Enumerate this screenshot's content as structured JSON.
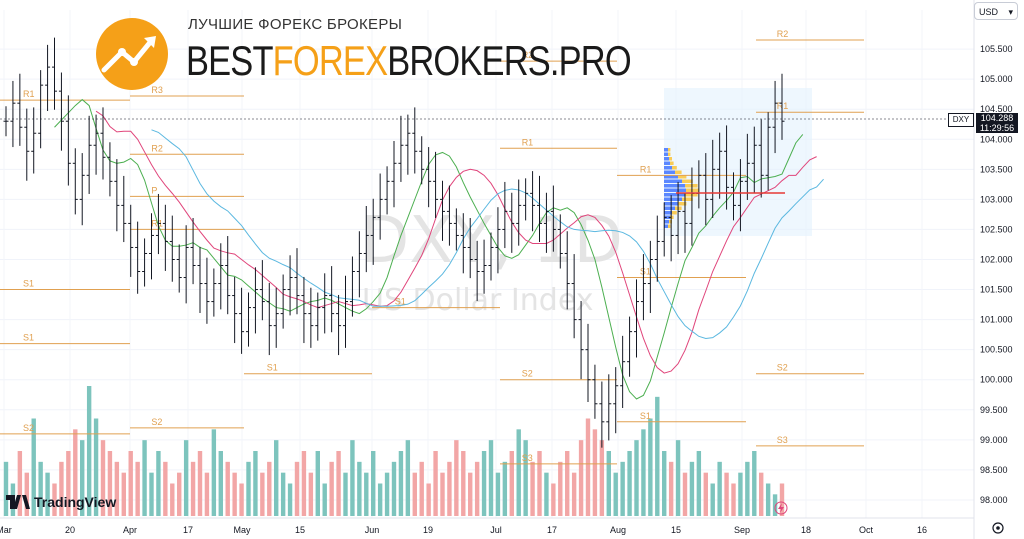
{
  "header": {
    "logo_subtitle": "ЛУЧШИЕ ФОРЕКС БРОКЕРЫ",
    "logo_part_a": "BEST",
    "logo_part_b": "FOREX",
    "logo_part_c": "BROKERS.PRO"
  },
  "toolbar": {
    "currency": "USD"
  },
  "branding": {
    "tradingview": "TradingView"
  },
  "watermark": {
    "symbol": "DXY, 1D",
    "name": "US Dollar Index"
  },
  "price_label": {
    "symbol": "DXY",
    "price": "104.288",
    "countdown": "11:29:56"
  },
  "colors": {
    "up": "#131722",
    "vol_up": "#7dc4bd",
    "vol_down": "#f2a6a6",
    "sma_fast": "#4caf50",
    "sma_mid": "#e0457b",
    "sma_slow": "#5bb8e0",
    "pivot": "#e0a050",
    "poc": "#e53935"
  },
  "chart_data": {
    "type": "ohlc",
    "y_ticks": [
      "105.500",
      "105.000",
      "104.500",
      "104.000",
      "103.500",
      "103.000",
      "102.500",
      "102.000",
      "101.500",
      "101.000",
      "100.500",
      "100.000",
      "99.500",
      "99.000",
      "98.500",
      "98.000"
    ],
    "ylim": [
      97.7,
      106.15
    ],
    "x_ticks": [
      "Mar",
      "20",
      "Apr",
      "17",
      "May",
      "15",
      "Jun",
      "19",
      "Jul",
      "17",
      "Aug",
      "15",
      "Sep",
      "18",
      "Oct",
      "16"
    ],
    "pivots": [
      {
        "label": "R1",
        "value": 104.65
      },
      {
        "label": "R3",
        "value": 104.72
      },
      {
        "label": "R2",
        "value": 103.75
      },
      {
        "label": "R1",
        "value": 102.5
      },
      {
        "label": "S1",
        "value": 101.5
      },
      {
        "label": "S1",
        "value": 100.6
      },
      {
        "label": "S1",
        "value": 100.1
      },
      {
        "label": "S2",
        "value": 99.1
      },
      {
        "label": "S2",
        "value": 99.2
      },
      {
        "label": "R2",
        "value": 105.3
      },
      {
        "label": "R2",
        "value": 105.65
      },
      {
        "label": "R1",
        "value": 103.85
      },
      {
        "label": "R1",
        "value": 104.45
      },
      {
        "label": "R1",
        "value": 103.4
      },
      {
        "label": "P",
        "value": 103.05
      },
      {
        "label": "S1",
        "value": 101.2
      },
      {
        "label": "S1",
        "value": 101.7
      },
      {
        "label": "S2",
        "value": 100.0
      },
      {
        "label": "S2",
        "value": 100.1
      },
      {
        "label": "S1",
        "value": 99.3
      },
      {
        "label": "S3",
        "value": 98.6
      },
      {
        "label": "S3",
        "value": 98.9
      }
    ],
    "closes": [
      104.3,
      104.6,
      104.2,
      103.8,
      104.1,
      104.9,
      105.2,
      104.8,
      104.3,
      103.6,
      103.0,
      103.4,
      103.9,
      104.1,
      103.7,
      103.3,
      102.9,
      102.6,
      102.2,
      101.8,
      102.1,
      102.4,
      102.6,
      102.3,
      102.0,
      101.7,
      102.2,
      101.9,
      101.6,
      101.3,
      101.6,
      101.9,
      101.4,
      101.1,
      100.8,
      101.2,
      101.5,
      101.3,
      100.9,
      101.1,
      101.5,
      101.7,
      101.4,
      101.1,
      100.9,
      101.2,
      101.4,
      101.1,
      100.9,
      101.3,
      101.8,
      102.1,
      102.4,
      102.7,
      103.0,
      103.3,
      103.6,
      103.9,
      104.1,
      103.8,
      103.5,
      103.3,
      103.0,
      102.8,
      102.6,
      102.4,
      102.2,
      102.0,
      101.8,
      101.9,
      102.2,
      102.5,
      102.8,
      102.6,
      102.9,
      103.1,
      102.9,
      102.6,
      102.8,
      102.5,
      102.1,
      101.6,
      101.0,
      100.5,
      100.0,
      99.6,
      99.3,
      99.6,
      99.9,
      100.3,
      100.8,
      101.3,
      101.6,
      102.0,
      102.3,
      102.7,
      102.4,
      102.8,
      102.6,
      103.1,
      103.4,
      103.0,
      103.5,
      103.8,
      103.2,
      102.9,
      103.3,
      103.6,
      103.9,
      103.4,
      104.2,
      104.6,
      104.3
    ],
    "volumes": [
      5,
      3,
      6,
      4,
      9,
      5,
      4,
      3,
      5,
      6,
      8,
      7,
      12,
      9,
      7,
      6,
      5,
      4,
      6,
      5,
      7,
      4,
      6,
      5,
      3,
      4,
      7,
      5,
      6,
      4,
      8,
      6,
      5,
      4,
      3,
      5,
      6,
      4,
      5,
      7,
      4,
      3,
      5,
      6,
      4,
      6,
      3,
      5,
      6,
      4,
      7,
      5,
      4,
      6,
      3,
      4,
      5,
      6,
      7,
      4,
      5,
      3,
      6,
      4,
      5,
      7,
      6,
      4,
      5,
      6,
      7,
      4,
      5,
      6,
      8,
      7,
      5,
      6,
      4,
      3,
      5,
      6,
      4,
      7,
      9,
      8,
      7,
      6,
      4,
      5,
      6,
      7,
      8,
      9,
      11,
      6,
      5,
      7,
      4,
      5,
      6,
      4,
      3,
      5,
      4,
      3,
      4,
      5,
      6,
      4,
      3,
      2,
      3
    ]
  }
}
